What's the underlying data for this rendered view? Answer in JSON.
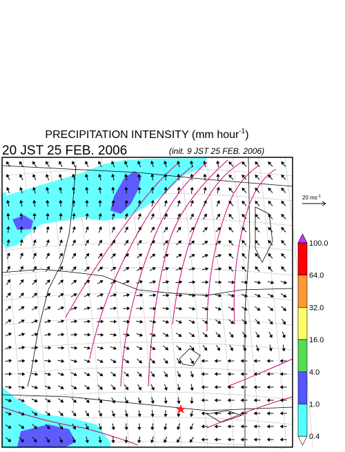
{
  "header": {
    "title": "PRECIPITATION INTENSITY (mm hour",
    "title_exponent": "-1",
    "title_end": ")",
    "valid_time": "20 JST 25 FEB. 2006",
    "init_time": "(init. 9 JST 25 FEB. 2006)"
  },
  "wind_legend": {
    "label": "20 ms",
    "exponent": "-1"
  },
  "colorbar": {
    "labels": [
      "100.0",
      "64.0",
      "32.0",
      "16.0",
      "4.0",
      "1.0",
      "0.4"
    ],
    "colors": [
      "#ff0000",
      "#ff9933",
      "#ffff66",
      "#55dd55",
      "#5555ff",
      "#55ffff"
    ],
    "over_color": "#cc33ff",
    "under_color": "#ffffff"
  }
}
